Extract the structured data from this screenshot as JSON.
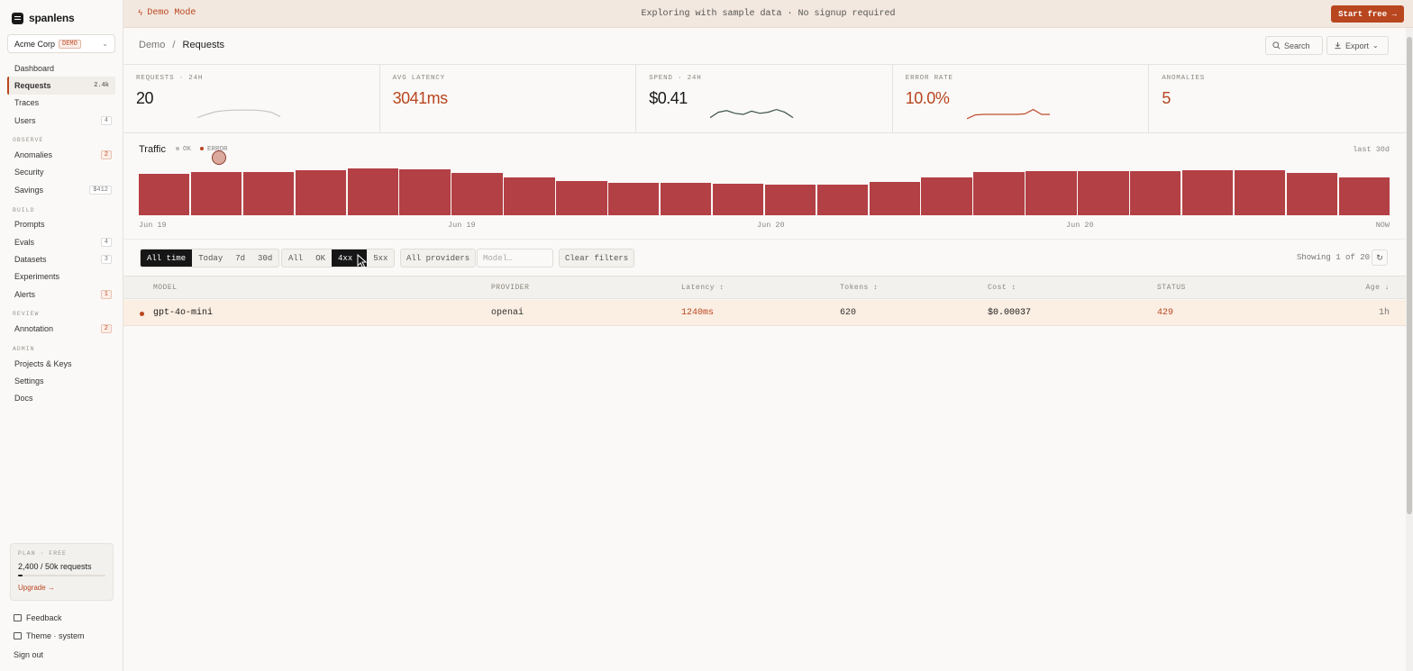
{
  "brand": {
    "name": "spanlens"
  },
  "org": {
    "name": "Acme Corp",
    "badge": "DEMO"
  },
  "sidebar": {
    "items": [
      {
        "label": "Dashboard"
      },
      {
        "label": "Requests",
        "count": "2.4k"
      },
      {
        "label": "Traces"
      },
      {
        "label": "Users",
        "count": "4"
      }
    ],
    "observe_label": "OBSERVE",
    "observe": [
      {
        "label": "Anomalies",
        "count": "2"
      },
      {
        "label": "Security"
      },
      {
        "label": "Savings",
        "count": "$412"
      }
    ],
    "build_label": "BUILD",
    "build": [
      {
        "label": "Prompts"
      },
      {
        "label": "Evals",
        "count": "4"
      },
      {
        "label": "Datasets",
        "count": "3"
      },
      {
        "label": "Experiments"
      },
      {
        "label": "Alerts",
        "count": "1"
      }
    ],
    "review_label": "REVIEW",
    "review": [
      {
        "label": "Annotation",
        "count": "2"
      }
    ],
    "admin_label": "ADMIN",
    "admin": [
      {
        "label": "Projects & Keys"
      },
      {
        "label": "Settings"
      },
      {
        "label": "Docs"
      }
    ]
  },
  "plan": {
    "title": "PLAN · FREE",
    "usage": "2,400 / 50k requests",
    "usage_fraction": 0.048,
    "upgrade": "Upgrade →"
  },
  "footer": {
    "feedback": "Feedback",
    "theme": "Theme · system",
    "signout": "Sign out"
  },
  "banner": {
    "mode": "Demo Mode",
    "message": "Exploring with sample data · No signup required",
    "cta": "Start free →"
  },
  "header": {
    "crumb_root": "Demo",
    "crumb_sep": "/",
    "crumb_current": "Requests",
    "search": "Search",
    "export": "Export"
  },
  "stats": [
    {
      "label": "REQUESTS · 24H",
      "value": "20",
      "color": "#1a1a1a",
      "spark": [
        0.2,
        0.5,
        0.75,
        0.85,
        0.9,
        0.9,
        0.9,
        0.85,
        0.7,
        0.3
      ],
      "spark_color": "#c8c6c3"
    },
    {
      "label": "AVG LATENCY",
      "value": "3041ms",
      "color": "#b8461f"
    },
    {
      "label": "SPEND · 24H",
      "value": "$0.41",
      "color": "#1a1a1a",
      "spark": [
        0.2,
        0.7,
        0.85,
        0.6,
        0.5,
        0.8,
        0.6,
        0.7,
        0.95,
        0.7,
        0.2
      ],
      "spark_color": "#3d524b"
    },
    {
      "label": "ERROR RATE",
      "value": "10.0%",
      "color": "#b8461f",
      "spark": [
        0.1,
        0.45,
        0.5,
        0.5,
        0.5,
        0.5,
        0.5,
        0.55,
        0.95,
        0.5,
        0.5
      ],
      "spark_color": "#c24d2c"
    },
    {
      "label": "ANOMALIES",
      "value": "5",
      "color": "#b8461f"
    }
  ],
  "traffic": {
    "title": "Traffic",
    "legend_ok": "OK",
    "legend_error": "ERROR",
    "range": "last 30d",
    "x_labels": [
      "Jun 19",
      "Jun 19",
      "Jun 20",
      "Jun 20",
      "NOW"
    ],
    "bar_color": "#b34045",
    "values": [
      46,
      48,
      48,
      50,
      52,
      51,
      47,
      42,
      38,
      36,
      36,
      35,
      34,
      34,
      37,
      42,
      48,
      49,
      49,
      49,
      50,
      50,
      47,
      42
    ]
  },
  "filters": {
    "time": [
      "All time",
      "Today",
      "7d",
      "30d"
    ],
    "time_active": 0,
    "status": [
      "All",
      "OK",
      "4xx",
      "5xx"
    ],
    "status_active": 2,
    "providers": "All providers",
    "model_placeholder": "Model…",
    "clear": "Clear filters",
    "showing": "Showing 1 of 20",
    "refresh": "↻"
  },
  "table": {
    "columns": {
      "model": "MODEL",
      "provider": "PROVIDER",
      "latency": "Latency ↕",
      "tokens": "Tokens ↕",
      "cost": "Cost ↕",
      "status": "STATUS",
      "age": "Age ↓"
    },
    "rows": [
      {
        "model": "gpt-4o-mini",
        "provider": "openai",
        "latency": "1240ms",
        "tokens": "620",
        "cost": "$0.00037",
        "status": "429",
        "age": "1h"
      }
    ]
  }
}
